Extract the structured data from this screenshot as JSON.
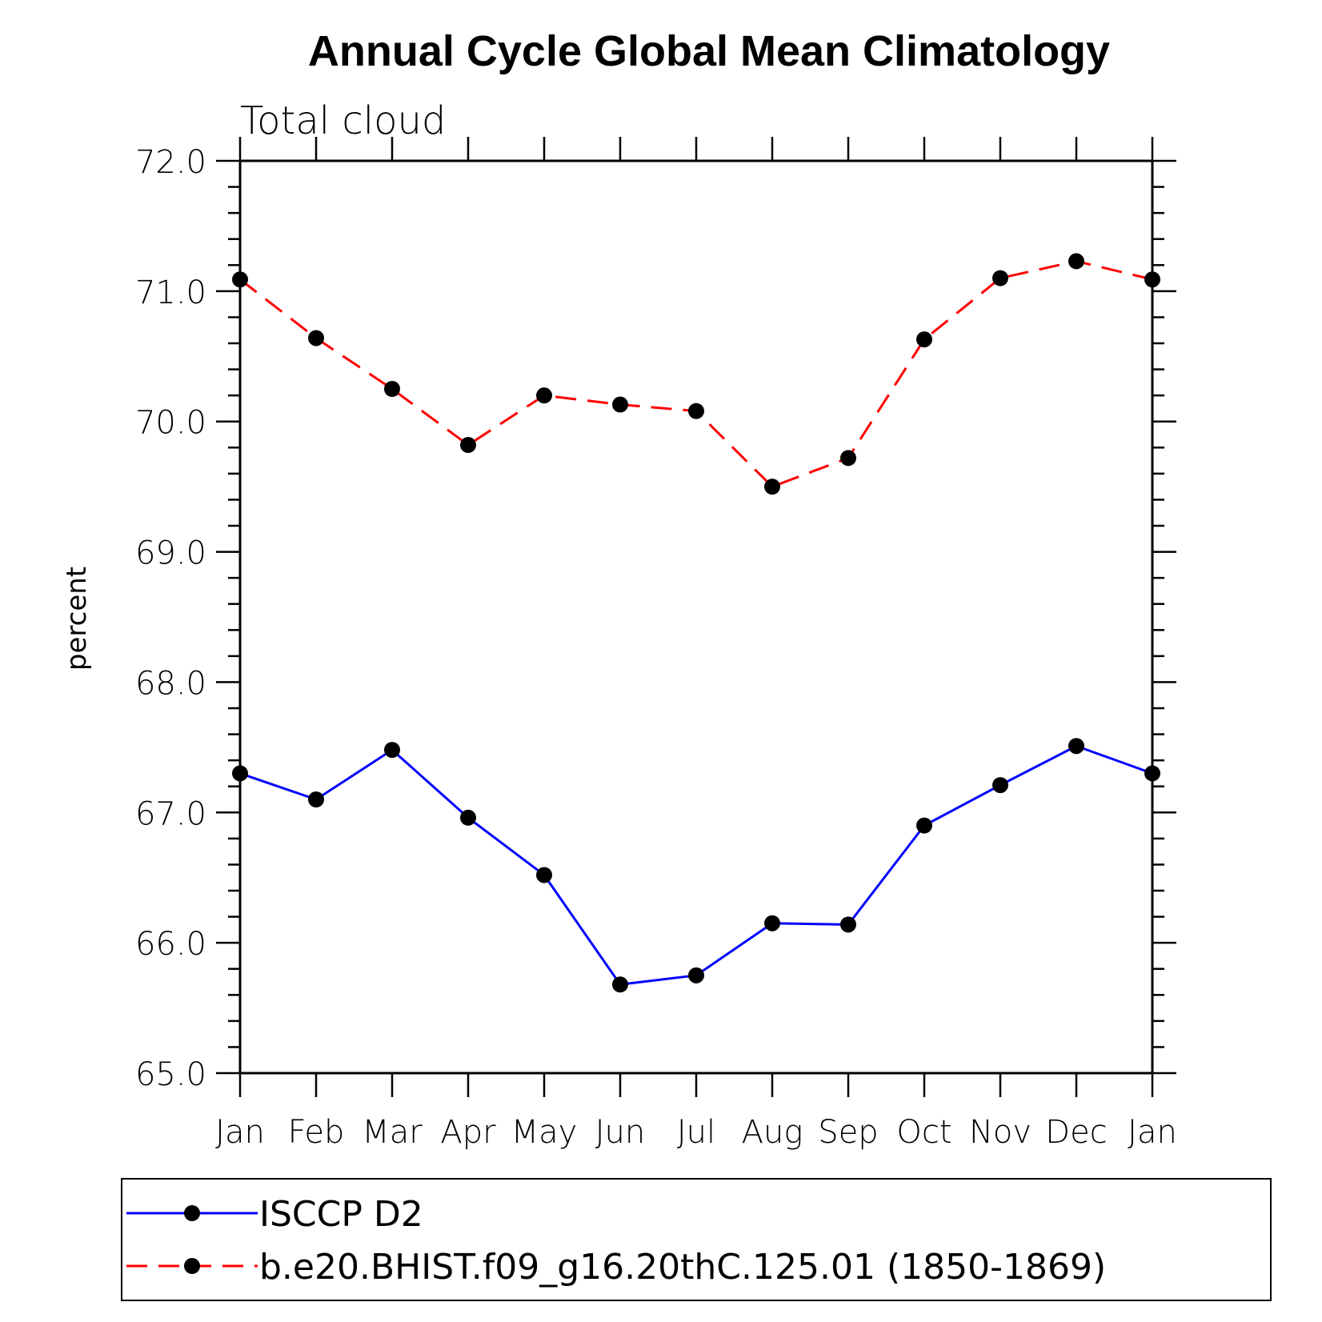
{
  "chart_data": {
    "type": "line",
    "title": "Annual Cycle Global Mean Climatology",
    "subtitle": "Total cloud",
    "xlabel": "",
    "ylabel": "percent",
    "categories": [
      "Jan",
      "Feb",
      "Mar",
      "Apr",
      "May",
      "Jun",
      "Jul",
      "Aug",
      "Sep",
      "Oct",
      "Nov",
      "Dec",
      "Jan"
    ],
    "ylim": [
      65.0,
      72.0
    ],
    "yticks": [
      65.0,
      66.0,
      67.0,
      68.0,
      69.0,
      70.0,
      71.0,
      72.0
    ],
    "ytick_labels": [
      "65.0",
      "66.0",
      "67.0",
      "68.0",
      "69.0",
      "70.0",
      "71.0",
      "72.0"
    ],
    "legend_position": "bottom",
    "grid": false,
    "series": [
      {
        "name": "ISCCP D2",
        "color": "#0000ff",
        "dash": "solid",
        "marker": "circle",
        "values": [
          67.3,
          67.1,
          67.48,
          66.96,
          66.52,
          65.68,
          65.75,
          66.15,
          66.14,
          66.9,
          67.21,
          67.51,
          67.3
        ]
      },
      {
        "name": "b.e20.BHIST.f09_g16.20thC.125.01 (1850-1869)",
        "color": "#ff0000",
        "dash": "dashed",
        "marker": "circle",
        "values": [
          71.09,
          70.64,
          70.25,
          69.82,
          70.2,
          70.13,
          70.08,
          69.5,
          69.72,
          70.63,
          71.1,
          71.23,
          71.09
        ]
      }
    ]
  }
}
